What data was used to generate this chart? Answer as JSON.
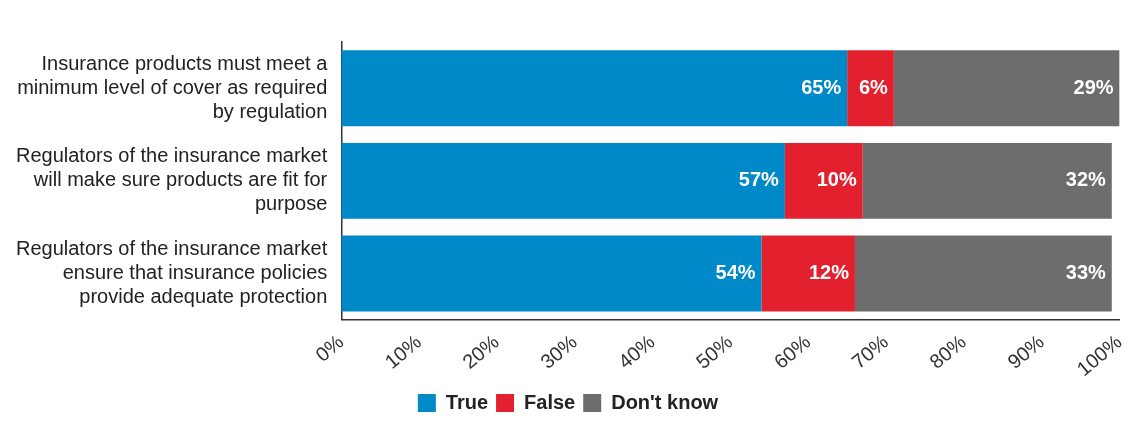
{
  "chart_data": {
    "type": "bar",
    "orientation": "horizontal",
    "stacked": true,
    "categories": [
      "Insurance products must meet a minimum level of cover as required by regulation",
      "Regulators of the insurance market will make sure products are fit for purpose",
      "Regulators of the insurance market ensure that insurance policies provide adequate protection"
    ],
    "series": [
      {
        "name": "True",
        "color": "#0089c8",
        "values": [
          65,
          57,
          54
        ],
        "value_labels": [
          "65%",
          "57%",
          "54%"
        ]
      },
      {
        "name": "False",
        "color": "#e3202e",
        "values": [
          6,
          10,
          12
        ],
        "value_labels": [
          "6%",
          "10%",
          "12%"
        ]
      },
      {
        "name": "Don't know",
        "color": "#6d6d6d",
        "values": [
          29,
          32,
          33
        ],
        "value_labels": [
          "29%",
          "32%",
          "33%"
        ]
      }
    ],
    "xlim": [
      0,
      100
    ],
    "xticks": [
      {
        "value": 0,
        "label": "0%"
      },
      {
        "value": 10,
        "label": "10%"
      },
      {
        "value": 20,
        "label": "20%"
      },
      {
        "value": 30,
        "label": "30%"
      },
      {
        "value": 40,
        "label": "40%"
      },
      {
        "value": 50,
        "label": "50%"
      },
      {
        "value": 60,
        "label": "60%"
      },
      {
        "value": 70,
        "label": "70%"
      },
      {
        "value": 80,
        "label": "80%"
      },
      {
        "value": 90,
        "label": "90%"
      },
      {
        "value": 100,
        "label": "100%"
      }
    ],
    "grid": false,
    "legend": "bottom"
  }
}
